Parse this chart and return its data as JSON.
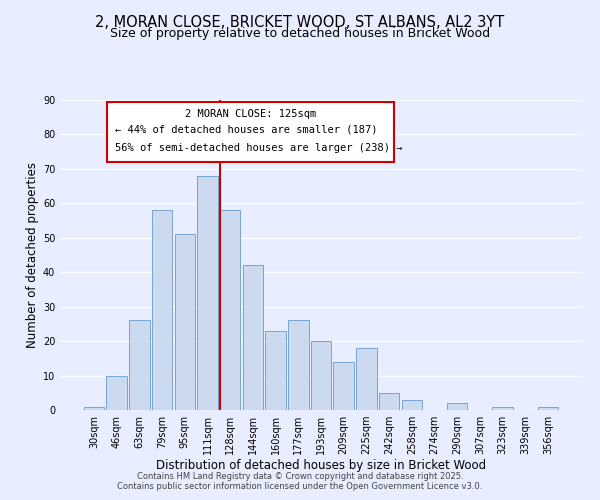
{
  "title": "2, MORAN CLOSE, BRICKET WOOD, ST ALBANS, AL2 3YT",
  "subtitle": "Size of property relative to detached houses in Bricket Wood",
  "xlabel": "Distribution of detached houses by size in Bricket Wood",
  "ylabel": "Number of detached properties",
  "bar_color": "#ccdaf0",
  "bar_edge_color": "#6699cc",
  "categories": [
    "30sqm",
    "46sqm",
    "63sqm",
    "79sqm",
    "95sqm",
    "111sqm",
    "128sqm",
    "144sqm",
    "160sqm",
    "177sqm",
    "193sqm",
    "209sqm",
    "225sqm",
    "242sqm",
    "258sqm",
    "274sqm",
    "290sqm",
    "307sqm",
    "323sqm",
    "339sqm",
    "356sqm"
  ],
  "values": [
    1,
    10,
    26,
    58,
    51,
    68,
    58,
    42,
    23,
    26,
    20,
    14,
    18,
    5,
    3,
    0,
    2,
    0,
    1,
    0,
    1
  ],
  "vline_x_index": 6,
  "vline_color": "#cc0000",
  "annotation_title": "2 MORAN CLOSE: 125sqm",
  "annotation_line1": "← 44% of detached houses are smaller (187)",
  "annotation_line2": "56% of semi-detached houses are larger (238) →",
  "ylim": [
    0,
    90
  ],
  "yticks": [
    0,
    10,
    20,
    30,
    40,
    50,
    60,
    70,
    80,
    90
  ],
  "footer1": "Contains HM Land Registry data © Crown copyright and database right 2025.",
  "footer2": "Contains public sector information licensed under the Open Government Licence v3.0.",
  "bg_color": "#e8eeff",
  "grid_color": "#ffffff",
  "title_fontsize": 10.5,
  "subtitle_fontsize": 9,
  "axis_label_fontsize": 8.5,
  "tick_fontsize": 7,
  "footer_fontsize": 6,
  "annotation_box_edge": "#cc0000"
}
